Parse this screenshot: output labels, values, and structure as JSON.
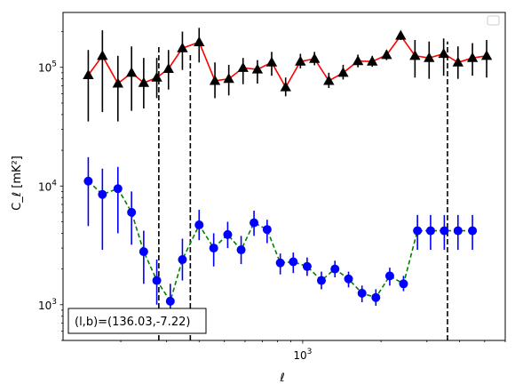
{
  "chart_data": {
    "type": "line",
    "xlabel": "ℓ",
    "ylabel": "C_ℓ [mK²]",
    "xscale": "log",
    "yscale": "log",
    "xlim": [
      120,
      6000
    ],
    "ylim": [
      500,
      290000
    ],
    "grid": false,
    "legend": "top-right (empty box)",
    "x_tick_labels": [
      {
        "value": 1000,
        "base": "10",
        "exp": "3"
      }
    ],
    "y_tick_labels": [
      {
        "value": 1000,
        "base": "10",
        "exp": "3"
      },
      {
        "value": 10000,
        "base": "10",
        "exp": "4"
      },
      {
        "value": 100000,
        "base": "10",
        "exp": "5"
      }
    ],
    "annotation": "(l,b)=(136.03,-7.22)",
    "vlines": [
      {
        "x": 280,
        "ymin": 500,
        "ymax": 150000
      },
      {
        "x": 370,
        "ymin": 500,
        "ymax": 130000
      },
      {
        "x": 3600,
        "ymin": 500,
        "ymax": 165000
      }
    ],
    "series": [
      {
        "color": "#ff0000",
        "marker": "triangle",
        "marker_color": "#000000",
        "error_color": "#000000",
        "linestyle": "solid",
        "x": [
          150,
          170,
          195,
          220,
          245,
          275,
          305,
          345,
          400,
          460,
          520,
          590,
          670,
          760,
          860,
          980,
          1110,
          1260,
          1430,
          1630,
          1850,
          2100,
          2380,
          2700,
          3060,
          3480,
          3950,
          4490,
          5090
        ],
        "y": [
          86000,
          125000,
          73000,
          90000,
          74000,
          82000,
          97000,
          145000,
          163000,
          77000,
          80000,
          99000,
          96000,
          110000,
          68000,
          112000,
          118000,
          77000,
          90000,
          113000,
          112000,
          127000,
          185000,
          125000,
          120000,
          130000,
          110000,
          120000,
          125000
        ],
        "yerr_low": [
          35000,
          42000,
          35000,
          43000,
          45000,
          55000,
          65000,
          95000,
          110000,
          55000,
          58000,
          72000,
          73000,
          85000,
          57000,
          98000,
          104000,
          67000,
          79000,
          100000,
          101000,
          115000,
          170000,
          82000,
          80000,
          85000,
          80000,
          85000,
          82000
        ],
        "yerr_high": [
          140000,
          205000,
          125000,
          150000,
          120000,
          120000,
          140000,
          200000,
          215000,
          110000,
          105000,
          120000,
          115000,
          135000,
          82000,
          130000,
          135000,
          90000,
          105000,
          128000,
          125000,
          140000,
          200000,
          170000,
          165000,
          175000,
          150000,
          160000,
          170000
        ]
      },
      {
        "color": "#008000",
        "marker": "circle",
        "marker_color": "#0000ff",
        "error_color": "#0000ff",
        "linestyle": "dashed",
        "x": [
          150,
          170,
          195,
          220,
          245,
          275,
          310,
          345,
          400,
          455,
          515,
          580,
          650,
          730,
          820,
          920,
          1040,
          1180,
          1330,
          1500,
          1690,
          1910,
          2160,
          2440,
          2760,
          3100,
          3500,
          3950,
          4490
        ],
        "y": [
          11000,
          8500,
          9500,
          6000,
          2800,
          1600,
          1070,
          2400,
          4700,
          3000,
          3900,
          2900,
          4900,
          4300,
          2250,
          2300,
          2100,
          1600,
          2000,
          1650,
          1250,
          1150,
          1750,
          1500,
          4200,
          4200,
          4200,
          4200,
          4200
        ],
        "yerr_low": [
          4600,
          2900,
          4000,
          3200,
          1500,
          1000,
          650,
          1600,
          3500,
          2100,
          3000,
          2200,
          3800,
          3300,
          1800,
          1850,
          1750,
          1350,
          1700,
          1400,
          1050,
          980,
          1450,
          1300,
          2900,
          2900,
          2900,
          2900,
          2900
        ],
        "yerr_high": [
          17500,
          14000,
          14500,
          9000,
          4200,
          2400,
          1500,
          3600,
          6300,
          4000,
          5000,
          3800,
          6200,
          5200,
          2700,
          2750,
          2500,
          1900,
          2350,
          1900,
          1450,
          1350,
          2050,
          1750,
          5700,
          5700,
          5700,
          5700,
          5700
        ]
      }
    ]
  }
}
